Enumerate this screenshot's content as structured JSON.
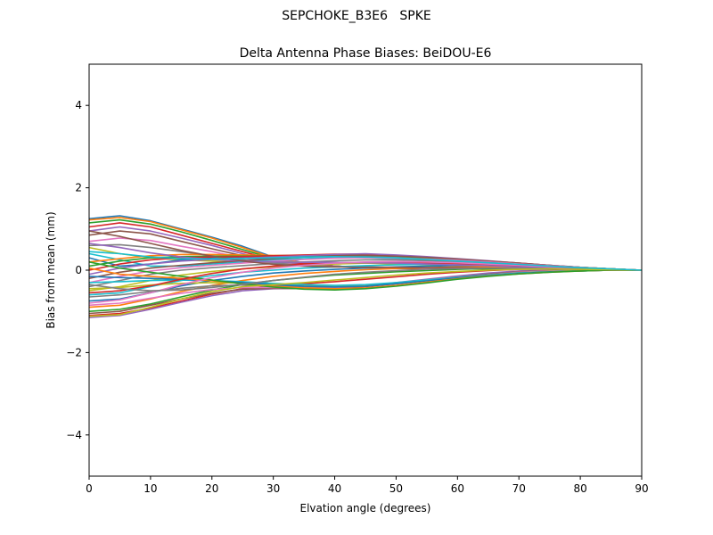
{
  "figure": {
    "suptitle": "SEPCHOKE_B3E6   SPKE"
  },
  "chart_data": {
    "type": "line",
    "title": "Delta Antenna Phase Biases: BeiDOU-E6",
    "xlabel": "Elvation angle (degrees)",
    "ylabel": "Bias from mean (mm)",
    "xlim": [
      0,
      90
    ],
    "ylim": [
      -5,
      5
    ],
    "xticks": [
      0,
      10,
      20,
      30,
      40,
      50,
      60,
      70,
      80,
      90
    ],
    "yticks": [
      -4,
      -2,
      0,
      2,
      4
    ],
    "xtick_labels": [
      "0",
      "10",
      "20",
      "30",
      "40",
      "50",
      "60",
      "70",
      "80",
      "90"
    ],
    "ytick_labels": [
      "−4",
      "−2",
      "0",
      "2",
      "4"
    ],
    "grid": false,
    "legend": "none",
    "x": [
      0,
      5,
      10,
      15,
      20,
      25,
      30,
      35,
      40,
      45,
      50,
      55,
      60,
      65,
      70,
      75,
      80,
      85,
      90
    ],
    "colors": [
      "#1f77b4",
      "#ff7f0e",
      "#2ca02c",
      "#d62728",
      "#9467bd",
      "#8c564b",
      "#e377c2",
      "#7f7f7f",
      "#bcbd22",
      "#17becf"
    ],
    "series": [
      {
        "values": [
          1.25,
          1.32,
          1.2,
          1.0,
          0.8,
          0.58,
          0.32,
          0.18,
          0.1,
          0.06,
          0.04,
          0.03,
          0.03,
          0.03,
          0.03,
          0.02,
          0.02,
          0.01,
          0.0
        ]
      },
      {
        "values": [
          1.22,
          1.28,
          1.18,
          0.98,
          0.78,
          0.55,
          0.3,
          0.17,
          0.1,
          0.06,
          0.05,
          0.04,
          0.03,
          0.03,
          0.03,
          0.02,
          0.02,
          0.01,
          0.0
        ]
      },
      {
        "values": [
          1.15,
          1.22,
          1.12,
          0.93,
          0.72,
          0.5,
          0.28,
          0.16,
          0.1,
          0.07,
          0.05,
          0.04,
          0.04,
          0.03,
          0.03,
          0.02,
          0.02,
          0.01,
          0.0
        ]
      },
      {
        "values": [
          1.05,
          1.15,
          1.05,
          0.85,
          0.65,
          0.45,
          0.25,
          0.15,
          0.1,
          0.07,
          0.05,
          0.04,
          0.04,
          0.04,
          0.03,
          0.03,
          0.02,
          0.01,
          0.0
        ]
      },
      {
        "values": [
          0.95,
          1.05,
          0.95,
          0.78,
          0.6,
          0.4,
          0.22,
          0.13,
          0.09,
          0.07,
          0.05,
          0.05,
          0.04,
          0.04,
          0.03,
          0.03,
          0.02,
          0.01,
          0.0
        ]
      },
      {
        "values": [
          0.85,
          0.95,
          0.88,
          0.7,
          0.52,
          0.35,
          0.2,
          0.12,
          0.09,
          0.07,
          0.06,
          0.05,
          0.04,
          0.04,
          0.03,
          0.03,
          0.02,
          0.01,
          0.0
        ]
      },
      {
        "values": [
          0.7,
          0.78,
          0.72,
          0.58,
          0.45,
          0.3,
          0.18,
          0.12,
          0.09,
          0.07,
          0.06,
          0.05,
          0.05,
          0.04,
          0.04,
          0.03,
          0.02,
          0.01,
          0.0
        ]
      },
      {
        "values": [
          0.6,
          0.62,
          0.55,
          0.45,
          0.35,
          0.25,
          0.16,
          0.11,
          0.09,
          0.08,
          0.07,
          0.06,
          0.05,
          0.04,
          0.04,
          0.03,
          0.02,
          0.01,
          0.0
        ]
      },
      {
        "values": [
          0.55,
          0.4,
          0.3,
          0.25,
          0.22,
          0.2,
          0.2,
          0.2,
          0.19,
          0.17,
          0.15,
          0.13,
          0.11,
          0.09,
          0.07,
          0.05,
          0.03,
          0.02,
          0.0
        ]
      },
      {
        "values": [
          0.4,
          0.25,
          0.1,
          0.1,
          0.15,
          0.2,
          0.25,
          0.28,
          0.3,
          0.3,
          0.28,
          0.25,
          0.21,
          0.17,
          0.13,
          0.09,
          0.06,
          0.03,
          0.0
        ]
      },
      {
        "values": [
          0.3,
          0.1,
          0.15,
          0.25,
          0.3,
          0.32,
          0.33,
          0.33,
          0.33,
          0.32,
          0.3,
          0.27,
          0.23,
          0.19,
          0.14,
          0.1,
          0.06,
          0.03,
          0.0
        ]
      },
      {
        "values": [
          0.2,
          0.28,
          0.35,
          0.38,
          0.38,
          0.37,
          0.36,
          0.35,
          0.34,
          0.32,
          0.3,
          0.27,
          0.23,
          0.19,
          0.15,
          0.11,
          0.07,
          0.03,
          0.0
        ]
      },
      {
        "values": [
          0.1,
          0.22,
          0.3,
          0.33,
          0.34,
          0.34,
          0.35,
          0.36,
          0.37,
          0.36,
          0.34,
          0.3,
          0.26,
          0.21,
          0.16,
          0.11,
          0.07,
          0.03,
          0.0
        ]
      },
      {
        "values": [
          0.0,
          0.15,
          0.25,
          0.3,
          0.32,
          0.33,
          0.35,
          0.37,
          0.39,
          0.39,
          0.36,
          0.32,
          0.27,
          0.22,
          0.17,
          0.12,
          0.07,
          0.03,
          0.0
        ]
      },
      {
        "values": [
          -0.1,
          0.05,
          0.15,
          0.22,
          0.26,
          0.29,
          0.32,
          0.35,
          0.38,
          0.4,
          0.37,
          0.33,
          0.28,
          0.23,
          0.17,
          0.12,
          0.07,
          0.03,
          0.0
        ]
      },
      {
        "values": [
          -0.2,
          -0.05,
          0.05,
          0.12,
          0.18,
          0.23,
          0.28,
          0.32,
          0.35,
          0.36,
          0.34,
          0.31,
          0.27,
          0.22,
          0.17,
          0.12,
          0.07,
          0.03,
          0.0
        ]
      },
      {
        "values": [
          -0.3,
          -0.15,
          -0.02,
          0.06,
          0.12,
          0.17,
          0.22,
          0.26,
          0.29,
          0.3,
          0.29,
          0.27,
          0.24,
          0.2,
          0.15,
          0.11,
          0.07,
          0.03,
          0.0
        ]
      },
      {
        "values": [
          -0.4,
          -0.25,
          -0.1,
          0.0,
          0.06,
          0.11,
          0.16,
          0.2,
          0.23,
          0.25,
          0.25,
          0.23,
          0.21,
          0.18,
          0.14,
          0.1,
          0.06,
          0.03,
          0.0
        ]
      },
      {
        "values": [
          -0.5,
          -0.4,
          -0.25,
          -0.12,
          -0.03,
          0.03,
          0.08,
          0.12,
          0.15,
          0.17,
          0.18,
          0.18,
          0.17,
          0.15,
          0.12,
          0.09,
          0.06,
          0.03,
          0.0
        ]
      },
      {
        "values": [
          -0.6,
          -0.55,
          -0.4,
          -0.25,
          -0.13,
          -0.05,
          0.0,
          0.05,
          0.08,
          0.11,
          0.13,
          0.14,
          0.14,
          0.13,
          0.11,
          0.08,
          0.05,
          0.02,
          0.0
        ]
      },
      {
        "values": [
          -0.75,
          -0.7,
          -0.55,
          -0.38,
          -0.25,
          -0.15,
          -0.07,
          -0.02,
          0.02,
          0.05,
          0.08,
          0.1,
          0.11,
          0.11,
          0.1,
          0.08,
          0.05,
          0.02,
          0.0
        ]
      },
      {
        "values": [
          -0.9,
          -0.85,
          -0.7,
          -0.52,
          -0.37,
          -0.25,
          -0.15,
          -0.08,
          -0.03,
          0.01,
          0.04,
          0.06,
          0.08,
          0.08,
          0.08,
          0.07,
          0.05,
          0.02,
          0.0
        ]
      },
      {
        "values": [
          -1.0,
          -0.95,
          -0.82,
          -0.65,
          -0.48,
          -0.35,
          -0.25,
          -0.18,
          -0.12,
          -0.08,
          -0.04,
          -0.01,
          0.02,
          0.04,
          0.05,
          0.05,
          0.04,
          0.02,
          0.0
        ]
      },
      {
        "values": [
          -1.1,
          -1.05,
          -0.92,
          -0.75,
          -0.58,
          -0.45,
          -0.38,
          -0.33,
          -0.28,
          -0.22,
          -0.16,
          -0.1,
          -0.05,
          -0.01,
          0.02,
          0.03,
          0.03,
          0.02,
          0.0
        ]
      },
      {
        "values": [
          -1.15,
          -1.1,
          -0.95,
          -0.78,
          -0.62,
          -0.5,
          -0.45,
          -0.44,
          -0.42,
          -0.38,
          -0.3,
          -0.22,
          -0.14,
          -0.07,
          -0.02,
          0.01,
          0.02,
          0.01,
          0.0
        ]
      },
      {
        "values": [
          -1.05,
          -1.0,
          -0.85,
          -0.7,
          -0.56,
          -0.46,
          -0.44,
          -0.45,
          -0.44,
          -0.4,
          -0.33,
          -0.25,
          -0.17,
          -0.1,
          -0.04,
          -0.01,
          0.01,
          0.01,
          0.0
        ]
      },
      {
        "values": [
          -0.85,
          -0.8,
          -0.68,
          -0.56,
          -0.47,
          -0.42,
          -0.42,
          -0.43,
          -0.42,
          -0.38,
          -0.32,
          -0.25,
          -0.18,
          -0.11,
          -0.05,
          -0.02,
          0.0,
          0.0,
          0.0
        ]
      },
      {
        "values": [
          -0.65,
          -0.6,
          -0.52,
          -0.44,
          -0.38,
          -0.36,
          -0.38,
          -0.4,
          -0.4,
          -0.37,
          -0.31,
          -0.24,
          -0.17,
          -0.11,
          -0.06,
          -0.03,
          -0.01,
          0.0,
          0.0
        ]
      },
      {
        "values": [
          -0.45,
          -0.42,
          -0.36,
          -0.32,
          -0.3,
          -0.31,
          -0.34,
          -0.37,
          -0.38,
          -0.36,
          -0.31,
          -0.24,
          -0.18,
          -0.12,
          -0.07,
          -0.03,
          -0.01,
          0.0,
          0.0
        ]
      },
      {
        "values": [
          -0.3,
          -0.28,
          -0.25,
          -0.24,
          -0.25,
          -0.28,
          -0.32,
          -0.35,
          -0.37,
          -0.35,
          -0.3,
          -0.24,
          -0.18,
          -0.12,
          -0.07,
          -0.04,
          -0.02,
          0.0,
          0.0
        ]
      },
      {
        "values": [
          -0.15,
          -0.18,
          -0.2,
          -0.22,
          -0.25,
          -0.3,
          -0.35,
          -0.39,
          -0.41,
          -0.39,
          -0.33,
          -0.26,
          -0.19,
          -0.13,
          -0.08,
          -0.04,
          -0.02,
          0.0,
          0.0
        ]
      },
      {
        "values": [
          0.05,
          -0.1,
          -0.15,
          -0.2,
          -0.26,
          -0.33,
          -0.39,
          -0.43,
          -0.45,
          -0.43,
          -0.37,
          -0.29,
          -0.21,
          -0.14,
          -0.09,
          -0.05,
          -0.02,
          0.0,
          0.0
        ]
      },
      {
        "values": [
          0.2,
          0.05,
          -0.05,
          -0.15,
          -0.24,
          -0.33,
          -0.41,
          -0.46,
          -0.48,
          -0.45,
          -0.39,
          -0.31,
          -0.22,
          -0.15,
          -0.09,
          -0.05,
          -0.02,
          0.0,
          0.0
        ]
      },
      {
        "values": [
          -0.55,
          -0.5,
          -0.38,
          -0.22,
          -0.08,
          0.03,
          0.1,
          0.15,
          0.18,
          0.19,
          0.19,
          0.18,
          0.16,
          0.13,
          0.1,
          0.07,
          0.04,
          0.02,
          0.0
        ]
      },
      {
        "values": [
          0.65,
          0.55,
          0.42,
          0.32,
          0.26,
          0.22,
          0.2,
          0.19,
          0.19,
          0.18,
          0.17,
          0.15,
          0.13,
          0.11,
          0.08,
          0.06,
          0.04,
          0.02,
          0.0
        ]
      },
      {
        "values": [
          0.95,
          0.82,
          0.65,
          0.48,
          0.34,
          0.22,
          0.14,
          0.1,
          0.08,
          0.07,
          0.07,
          0.06,
          0.06,
          0.05,
          0.04,
          0.03,
          0.02,
          0.01,
          0.0
        ]
      },
      {
        "values": [
          -0.8,
          -0.72,
          -0.55,
          -0.35,
          -0.18,
          -0.05,
          0.05,
          0.12,
          0.17,
          0.2,
          0.21,
          0.2,
          0.18,
          0.15,
          0.12,
          0.08,
          0.05,
          0.02,
          0.0
        ]
      },
      {
        "values": [
          -0.35,
          -0.45,
          -0.5,
          -0.48,
          -0.42,
          -0.34,
          -0.25,
          -0.17,
          -0.1,
          -0.05,
          -0.01,
          0.02,
          0.04,
          0.05,
          0.05,
          0.04,
          0.03,
          0.02,
          0.0
        ]
      },
      {
        "values": [
          -1.12,
          -1.08,
          -0.9,
          -0.7,
          -0.52,
          -0.4,
          -0.35,
          -0.3,
          -0.24,
          -0.18,
          -0.12,
          -0.07,
          -0.03,
          0.0,
          0.02,
          0.03,
          0.02,
          0.01,
          0.0
        ]
      },
      {
        "values": [
          0.45,
          0.4,
          0.32,
          0.28,
          0.27,
          0.28,
          0.3,
          0.32,
          0.33,
          0.32,
          0.3,
          0.26,
          0.22,
          0.18,
          0.14,
          0.1,
          0.06,
          0.03,
          0.0
        ]
      }
    ]
  }
}
